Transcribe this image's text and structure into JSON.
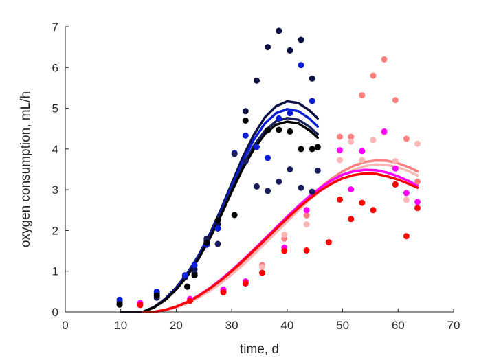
{
  "chart_data": {
    "type": "scatter",
    "title": "",
    "xlabel": "time, d",
    "ylabel": "oxygen consumption, mL/h",
    "xlim": [
      0,
      70
    ],
    "ylim": [
      0,
      7
    ],
    "xticks": [
      0,
      10,
      20,
      30,
      40,
      50,
      60,
      70
    ],
    "yticks": [
      0,
      1,
      2,
      3,
      4,
      5,
      6,
      7
    ],
    "grid": false,
    "legend": "none",
    "series": [
      {
        "color": "#0d1045",
        "points": [
          [
            9.8,
            0.25
          ],
          [
            16.5,
            0.45
          ],
          [
            21.6,
            0.85
          ],
          [
            23.3,
            1.05
          ],
          [
            25.5,
            1.8
          ],
          [
            27.5,
            2.15
          ],
          [
            32.5,
            4.93
          ],
          [
            34.5,
            5.68
          ],
          [
            36.5,
            6.5
          ],
          [
            38.5,
            6.9
          ],
          [
            40.5,
            6.42
          ],
          [
            42.5,
            6.68
          ],
          [
            44.5,
            5.73
          ],
          [
            45.5,
            4.05
          ]
        ],
        "curve": [
          [
            10,
            0.0
          ],
          [
            14,
            0.0
          ],
          [
            16,
            0.12
          ],
          [
            18,
            0.32
          ],
          [
            20,
            0.6
          ],
          [
            22,
            0.95
          ],
          [
            24,
            1.38
          ],
          [
            26,
            1.9
          ],
          [
            28,
            2.5
          ],
          [
            30,
            3.15
          ],
          [
            32,
            3.8
          ],
          [
            34,
            4.35
          ],
          [
            36,
            4.78
          ],
          [
            38,
            5.05
          ],
          [
            40,
            5.17
          ],
          [
            42,
            5.13
          ],
          [
            44,
            4.95
          ],
          [
            45.5,
            4.75
          ]
        ]
      },
      {
        "color": "#0b1fd6",
        "points": [
          [
            9.8,
            0.3
          ],
          [
            16.5,
            0.5
          ],
          [
            21.6,
            0.9
          ],
          [
            23.3,
            1.15
          ],
          [
            25.5,
            1.65
          ],
          [
            27.5,
            2.05
          ],
          [
            30.5,
            3.9
          ],
          [
            32.5,
            4.33
          ],
          [
            34.5,
            4.05
          ],
          [
            36.5,
            3.78
          ],
          [
            38.5,
            4.75
          ],
          [
            40.5,
            4.88
          ],
          [
            42.5,
            6.06
          ],
          [
            44.5,
            5.18
          ]
        ],
        "curve": [
          [
            10,
            0.0
          ],
          [
            14,
            0.0
          ],
          [
            16,
            0.12
          ],
          [
            18,
            0.31
          ],
          [
            20,
            0.58
          ],
          [
            22,
            0.93
          ],
          [
            24,
            1.35
          ],
          [
            26,
            1.86
          ],
          [
            28,
            2.45
          ],
          [
            30,
            3.08
          ],
          [
            32,
            3.7
          ],
          [
            34,
            4.23
          ],
          [
            36,
            4.63
          ],
          [
            38,
            4.88
          ],
          [
            40,
            4.98
          ],
          [
            42,
            4.93
          ],
          [
            44,
            4.75
          ],
          [
            45.5,
            4.55
          ]
        ]
      },
      {
        "color": "#1a1f5e",
        "points": [
          [
            9.8,
            0.2
          ],
          [
            16.5,
            0.35
          ],
          [
            22.0,
            0.62
          ],
          [
            23.3,
            0.95
          ],
          [
            25.5,
            1.75
          ],
          [
            27.5,
            1.67
          ],
          [
            30.5,
            3.88
          ],
          [
            32.5,
            3.7
          ],
          [
            34.5,
            3.08
          ],
          [
            36.5,
            2.97
          ],
          [
            38.5,
            3.2
          ],
          [
            40.5,
            3.5
          ],
          [
            42.5,
            3.05
          ],
          [
            44.5,
            2.95
          ],
          [
            45.5,
            3.47
          ]
        ],
        "curve": [
          [
            10,
            0.0
          ],
          [
            14,
            0.0
          ],
          [
            16,
            0.12
          ],
          [
            18,
            0.3
          ],
          [
            20,
            0.56
          ],
          [
            22,
            0.9
          ],
          [
            24,
            1.32
          ],
          [
            26,
            1.82
          ],
          [
            28,
            2.4
          ],
          [
            30,
            3.0
          ],
          [
            32,
            3.58
          ],
          [
            34,
            4.08
          ],
          [
            36,
            4.45
          ],
          [
            38,
            4.68
          ],
          [
            40,
            4.76
          ],
          [
            42,
            4.72
          ],
          [
            44,
            4.55
          ],
          [
            45.5,
            4.36
          ]
        ]
      },
      {
        "color": "#000000",
        "points": [
          [
            9.8,
            0.18
          ],
          [
            16.5,
            0.4
          ],
          [
            22.0,
            0.62
          ],
          [
            23.3,
            0.9
          ],
          [
            25.5,
            1.7
          ],
          [
            27.5,
            2.25
          ],
          [
            30.5,
            2.38
          ],
          [
            32.5,
            4.7
          ],
          [
            36.5,
            4.46
          ],
          [
            38.5,
            4.47
          ],
          [
            40.5,
            4.43
          ],
          [
            42.5,
            4.0
          ],
          [
            44.5,
            4.0
          ],
          [
            45.5,
            4.04
          ]
        ],
        "curve": [
          [
            10,
            0.0
          ],
          [
            14,
            0.0
          ],
          [
            16,
            0.11
          ],
          [
            18,
            0.29
          ],
          [
            20,
            0.55
          ],
          [
            22,
            0.88
          ],
          [
            24,
            1.3
          ],
          [
            26,
            1.79
          ],
          [
            28,
            2.35
          ],
          [
            30,
            2.95
          ],
          [
            32,
            3.52
          ],
          [
            34,
            4.0
          ],
          [
            36,
            4.37
          ],
          [
            38,
            4.6
          ],
          [
            40,
            4.67
          ],
          [
            42,
            4.63
          ],
          [
            44,
            4.46
          ],
          [
            45.5,
            4.28
          ]
        ]
      },
      {
        "color": "#fa7f7f",
        "points": [
          [
            13.5,
            0.2
          ],
          [
            22.5,
            0.3
          ],
          [
            28.5,
            0.55
          ],
          [
            32.5,
            0.7
          ],
          [
            35.5,
            1.15
          ],
          [
            39.5,
            1.8
          ],
          [
            43.5,
            2.37
          ],
          [
            49.5,
            4.3
          ],
          [
            51.5,
            4.3
          ],
          [
            53.5,
            5.32
          ],
          [
            55.5,
            5.8
          ],
          [
            57.5,
            6.2
          ],
          [
            59.5,
            5.2
          ],
          [
            61.5,
            4.25
          ],
          [
            63.5,
            3.2
          ]
        ],
        "curve": [
          [
            14,
            0.0
          ],
          [
            16,
            0.0
          ],
          [
            18,
            0.04
          ],
          [
            20,
            0.12
          ],
          [
            22,
            0.22
          ],
          [
            24,
            0.36
          ],
          [
            26,
            0.52
          ],
          [
            28,
            0.72
          ],
          [
            30,
            0.94
          ],
          [
            32,
            1.18
          ],
          [
            34,
            1.45
          ],
          [
            36,
            1.72
          ],
          [
            38,
            2.0
          ],
          [
            40,
            2.28
          ],
          [
            42,
            2.56
          ],
          [
            44,
            2.82
          ],
          [
            46,
            3.06
          ],
          [
            48,
            3.27
          ],
          [
            50,
            3.45
          ],
          [
            52,
            3.59
          ],
          [
            54,
            3.68
          ],
          [
            56,
            3.72
          ],
          [
            58,
            3.71
          ],
          [
            60,
            3.65
          ],
          [
            62,
            3.55
          ],
          [
            63.5,
            3.45
          ]
        ]
      },
      {
        "color": "#fbb6b6",
        "points": [
          [
            13.5,
            0.2
          ],
          [
            22.5,
            0.28
          ],
          [
            28.5,
            0.5
          ],
          [
            32.5,
            0.75
          ],
          [
            35.5,
            1.1
          ],
          [
            39.5,
            1.9
          ],
          [
            43.5,
            2.15
          ],
          [
            49.5,
            3.73
          ],
          [
            51.5,
            4.18
          ],
          [
            53.5,
            3.73
          ],
          [
            55.5,
            4.22
          ],
          [
            57.5,
            4.4
          ],
          [
            59.5,
            3.7
          ],
          [
            61.5,
            2.75
          ],
          [
            63.5,
            4.13
          ]
        ],
        "curve": [
          [
            14,
            0.0
          ],
          [
            16,
            0.0
          ],
          [
            18,
            0.04
          ],
          [
            20,
            0.11
          ],
          [
            22,
            0.21
          ],
          [
            24,
            0.35
          ],
          [
            26,
            0.51
          ],
          [
            28,
            0.7
          ],
          [
            30,
            0.92
          ],
          [
            32,
            1.15
          ],
          [
            34,
            1.41
          ],
          [
            36,
            1.68
          ],
          [
            38,
            1.95
          ],
          [
            40,
            2.22
          ],
          [
            42,
            2.49
          ],
          [
            44,
            2.75
          ],
          [
            46,
            2.98
          ],
          [
            48,
            3.19
          ],
          [
            50,
            3.36
          ],
          [
            52,
            3.49
          ],
          [
            54,
            3.58
          ],
          [
            56,
            3.62
          ],
          [
            58,
            3.61
          ],
          [
            60,
            3.55
          ],
          [
            62,
            3.45
          ],
          [
            63.5,
            3.35
          ]
        ]
      },
      {
        "color": "#ff00ff",
        "points": [
          [
            13.5,
            0.22
          ],
          [
            22.5,
            0.32
          ],
          [
            28.5,
            0.55
          ],
          [
            32.5,
            0.75
          ],
          [
            39.5,
            1.58
          ],
          [
            43.5,
            2.5
          ],
          [
            49.5,
            3.97
          ],
          [
            51.5,
            3.01
          ],
          [
            53.5,
            3.95
          ],
          [
            57.5,
            4.43
          ],
          [
            59.5,
            3.52
          ],
          [
            61.5,
            2.92
          ],
          [
            63.5,
            2.7
          ]
        ],
        "curve": [
          [
            14,
            0.0
          ],
          [
            16,
            0.0
          ],
          [
            18,
            0.05
          ],
          [
            20,
            0.13
          ],
          [
            22,
            0.25
          ],
          [
            24,
            0.4
          ],
          [
            26,
            0.58
          ],
          [
            28,
            0.79
          ],
          [
            30,
            1.02
          ],
          [
            32,
            1.27
          ],
          [
            34,
            1.53
          ],
          [
            36,
            1.8
          ],
          [
            38,
            2.07
          ],
          [
            40,
            2.34
          ],
          [
            42,
            2.6
          ],
          [
            44,
            2.84
          ],
          [
            46,
            3.05
          ],
          [
            48,
            3.23
          ],
          [
            50,
            3.37
          ],
          [
            52,
            3.45
          ],
          [
            54,
            3.49
          ],
          [
            56,
            3.48
          ],
          [
            58,
            3.42
          ],
          [
            60,
            3.33
          ],
          [
            62,
            3.21
          ],
          [
            63.5,
            3.1
          ]
        ]
      },
      {
        "color": "#ff0000",
        "points": [
          [
            13.5,
            0.17
          ],
          [
            22.5,
            0.27
          ],
          [
            28.5,
            0.48
          ],
          [
            32.5,
            0.7
          ],
          [
            35.5,
            0.96
          ],
          [
            39.5,
            1.5
          ],
          [
            43.5,
            1.51
          ],
          [
            47.5,
            1.71
          ],
          [
            49.5,
            2.76
          ],
          [
            51.5,
            2.28
          ],
          [
            53.5,
            2.68
          ],
          [
            55.5,
            2.5
          ],
          [
            59.5,
            3.13
          ],
          [
            61.5,
            1.86
          ],
          [
            63.5,
            2.55
          ]
        ],
        "curve": [
          [
            14,
            0.0
          ],
          [
            16,
            0.0
          ],
          [
            18,
            0.05
          ],
          [
            20,
            0.13
          ],
          [
            22,
            0.24
          ],
          [
            24,
            0.39
          ],
          [
            26,
            0.57
          ],
          [
            28,
            0.77
          ],
          [
            30,
            1.0
          ],
          [
            32,
            1.25
          ],
          [
            34,
            1.51
          ],
          [
            36,
            1.77
          ],
          [
            38,
            2.04
          ],
          [
            40,
            2.3
          ],
          [
            42,
            2.55
          ],
          [
            44,
            2.78
          ],
          [
            46,
            2.98
          ],
          [
            48,
            3.15
          ],
          [
            50,
            3.28
          ],
          [
            52,
            3.36
          ],
          [
            54,
            3.4
          ],
          [
            56,
            3.39
          ],
          [
            58,
            3.33
          ],
          [
            60,
            3.25
          ],
          [
            62,
            3.14
          ],
          [
            63.5,
            3.05
          ]
        ]
      }
    ]
  }
}
